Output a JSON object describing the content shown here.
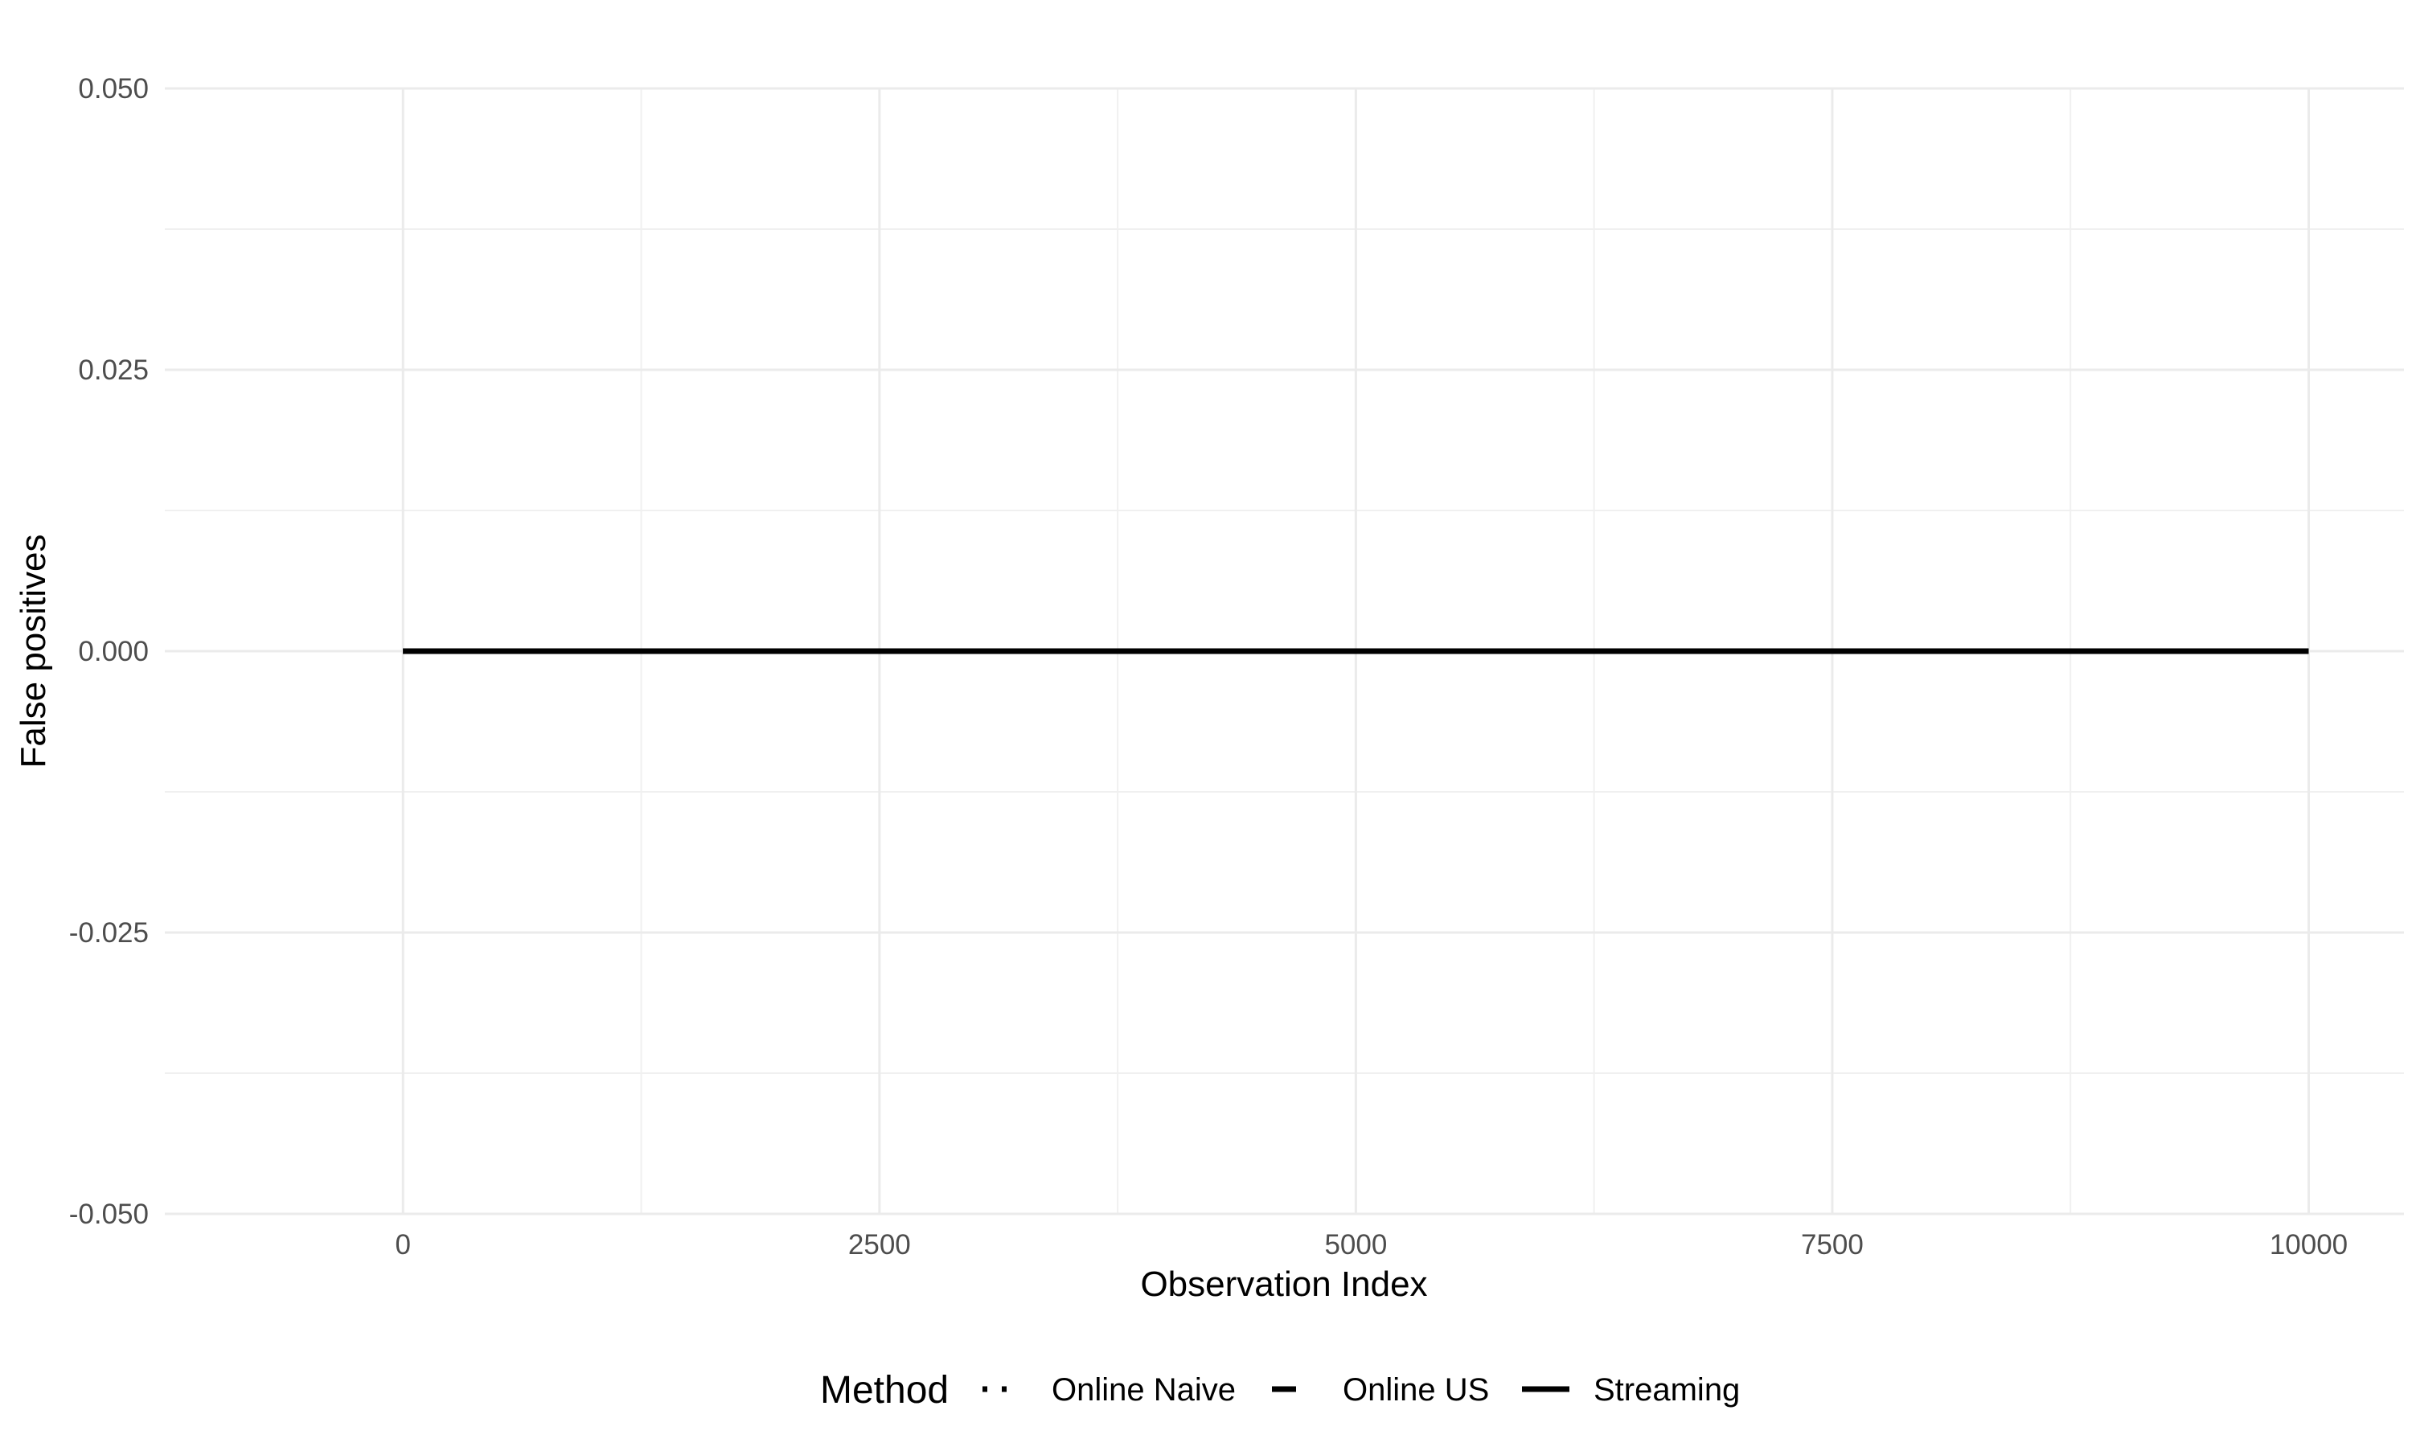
{
  "chart_data": {
    "type": "line",
    "xlabel": "Observation Index",
    "ylabel": "False positives",
    "xlim": [
      -1250,
      10500
    ],
    "ylim": [
      -0.05,
      0.05
    ],
    "x_ticks": [
      0,
      2500,
      5000,
      7500,
      10000
    ],
    "x_tick_labels": [
      "0",
      "2500",
      "5000",
      "7500",
      "10000"
    ],
    "y_ticks": [
      -0.05,
      -0.025,
      0,
      0.025,
      0.05
    ],
    "y_tick_labels": [
      "-0.050",
      "-0.025",
      "0.000",
      "0.025",
      "0.050"
    ],
    "grid": true,
    "legend": {
      "title": "Method",
      "position": "bottom",
      "entries": [
        "Online Naive",
        "Online US",
        "Streaming"
      ]
    },
    "series": [
      {
        "name": "Online Naive",
        "linetype": "dotted",
        "color": "#000000",
        "x": [
          0,
          10000
        ],
        "y": [
          0,
          0
        ]
      },
      {
        "name": "Online US",
        "linetype": "dashed",
        "color": "#000000",
        "x": [
          0,
          10000
        ],
        "y": [
          0,
          0
        ]
      },
      {
        "name": "Streaming",
        "linetype": "solid",
        "color": "#000000",
        "x": [
          0,
          10000
        ],
        "y": [
          0,
          0
        ]
      }
    ]
  }
}
